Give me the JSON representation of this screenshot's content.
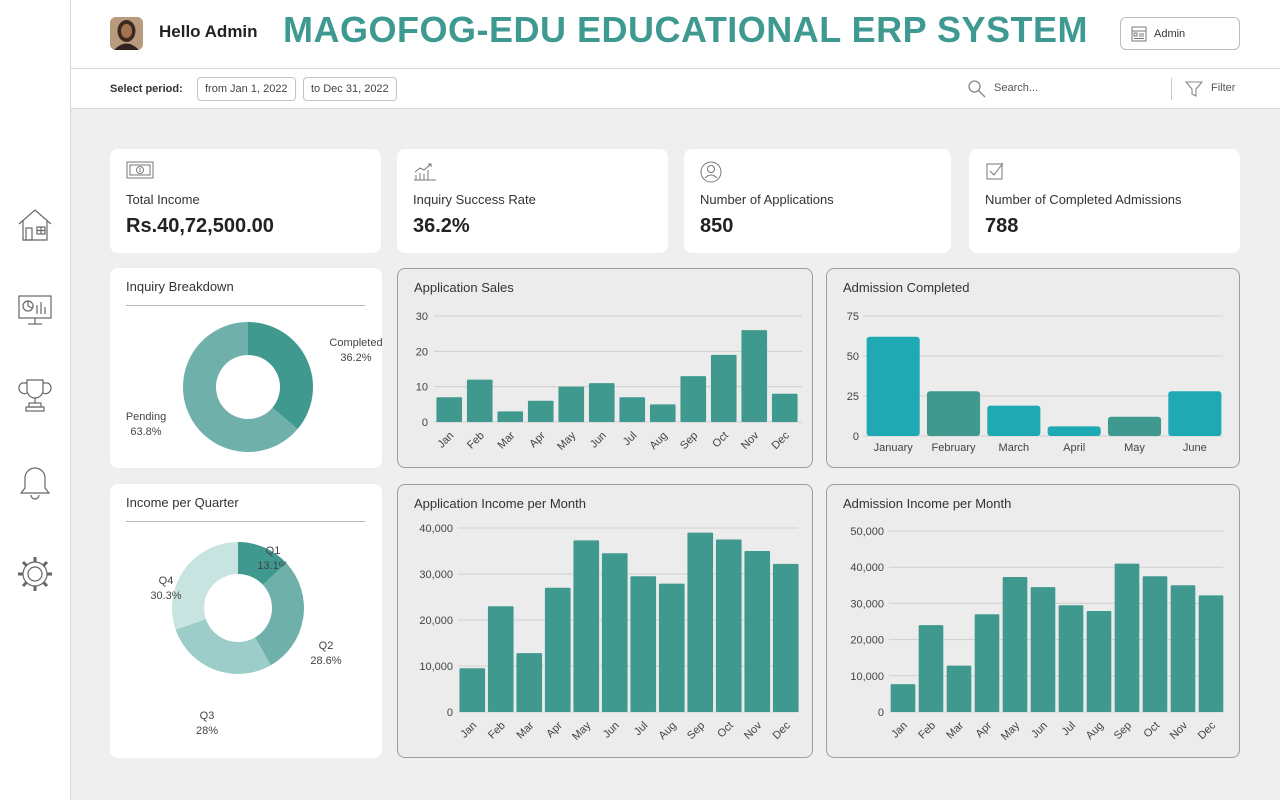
{
  "header": {
    "greeting": "Hello Admin",
    "app_title": "MAGOFOG-EDU EDUCATIONAL ERP SYSTEM",
    "user_button_label": "Admin"
  },
  "filterbar": {
    "period_label": "Select period:",
    "from_date": "from Jan 1, 2022",
    "to_date": "to Dec 31, 2022",
    "search_placeholder": "Search...",
    "filter_label": "Filter"
  },
  "sidebar": {
    "items": [
      {
        "icon": "home-icon"
      },
      {
        "icon": "dashboard-icon"
      },
      {
        "icon": "trophy-icon"
      },
      {
        "icon": "bell-icon"
      },
      {
        "icon": "gear-icon"
      }
    ]
  },
  "kpis": [
    {
      "label": "Total Income",
      "value": "Rs.40,72,500.00",
      "icon": "money-icon"
    },
    {
      "label": "Inquiry Success Rate",
      "value": "36.2%",
      "icon": "growth-chart-icon"
    },
    {
      "label": "Number of Applications",
      "value": "850",
      "icon": "user-circle-icon"
    },
    {
      "label": "Number of Completed Admissions",
      "value": "788",
      "icon": "checkbox-icon"
    }
  ],
  "colors": {
    "accent": "#3e9a91",
    "bar_teal": "#40998f",
    "bar_cyan": "#1fa9b3",
    "donut_dark": "#40998f",
    "donut_mid": "#6fb1aa",
    "donut_light": "#9dcdc8",
    "donut_lightest": "#c7e4e1"
  },
  "chart_data": [
    {
      "id": "inquiry-breakdown",
      "type": "pie",
      "title": "Inquiry Breakdown",
      "slices": [
        {
          "label": "Completed",
          "display": "36.2%",
          "value": 36.2,
          "color": "#40998f"
        },
        {
          "label": "Pending",
          "display": "63.8%",
          "value": 63.8,
          "color": "#6fb1aa"
        }
      ]
    },
    {
      "id": "application-sales",
      "type": "bar",
      "title": "Application Sales",
      "categories": [
        "Jan",
        "Feb",
        "Mar",
        "Apr",
        "May",
        "Jun",
        "Jul",
        "Aug",
        "Sep",
        "Oct",
        "Nov",
        "Dec"
      ],
      "values": [
        7,
        12,
        3,
        6,
        10,
        11,
        7,
        5,
        13,
        19,
        26,
        8
      ],
      "ylim": [
        0,
        30
      ],
      "yticks": [
        0,
        10,
        20,
        30
      ],
      "ytick_labels": [
        "0",
        "10",
        "20",
        "30"
      ],
      "color": "#40998f"
    },
    {
      "id": "admission-completed",
      "type": "bar",
      "title": "Admission Completed",
      "categories": [
        "January",
        "February",
        "March",
        "April",
        "May",
        "June"
      ],
      "values": [
        62,
        28,
        19,
        6,
        12,
        28
      ],
      "colors": [
        "#1fa9b3",
        "#40998f",
        "#1fa9b3",
        "#1fa9b3",
        "#40998f",
        "#1fa9b3"
      ],
      "ylim": [
        0,
        75
      ],
      "yticks": [
        0,
        25,
        50,
        75
      ],
      "ytick_labels": [
        "0",
        "25",
        "50",
        "75"
      ]
    },
    {
      "id": "income-per-quarter",
      "type": "pie",
      "title": "Income per Quarter",
      "slices": [
        {
          "label": "Q1",
          "display": "13.1%",
          "value": 13.1,
          "color": "#40998f"
        },
        {
          "label": "Q2",
          "display": "28.6%",
          "value": 28.6,
          "color": "#6fb1aa"
        },
        {
          "label": "Q3",
          "display": "28%",
          "value": 28.0,
          "color": "#9dcdc8"
        },
        {
          "label": "Q4",
          "display": "30.3%",
          "value": 30.3,
          "color": "#c7e4e1"
        }
      ]
    },
    {
      "id": "application-income-per-month",
      "type": "bar",
      "title": "Application Income per Month",
      "categories": [
        "Jan",
        "Feb",
        "Mar",
        "Apr",
        "May",
        "Jun",
        "Jul",
        "Aug",
        "Sep",
        "Oct",
        "Nov",
        "Dec"
      ],
      "values": [
        9500,
        23000,
        12800,
        27000,
        37300,
        34500,
        29500,
        27900,
        39000,
        37500,
        35000,
        32200
      ],
      "ylim": [
        0,
        40000
      ],
      "yticks": [
        0,
        10000,
        20000,
        30000,
        40000
      ],
      "ytick_labels": [
        "0",
        "10,000",
        "20,000",
        "30,000",
        "40,000"
      ],
      "color": "#40998f"
    },
    {
      "id": "admission-income-per-month",
      "type": "bar",
      "title": "Admission Income per Month",
      "categories": [
        "Jan",
        "Feb",
        "Mar",
        "Apr",
        "May",
        "Jun",
        "Jul",
        "Aug",
        "Sep",
        "Oct",
        "Nov",
        "Dec"
      ],
      "values": [
        7700,
        24000,
        12800,
        27000,
        37300,
        34500,
        29500,
        27900,
        41000,
        37500,
        35000,
        32200
      ],
      "ylim": [
        0,
        50000
      ],
      "yticks": [
        0,
        10000,
        20000,
        30000,
        40000,
        50000
      ],
      "ytick_labels": [
        "0",
        "10,000",
        "20,000",
        "30,000",
        "40,000",
        "50,000"
      ],
      "color": "#40998f"
    }
  ]
}
